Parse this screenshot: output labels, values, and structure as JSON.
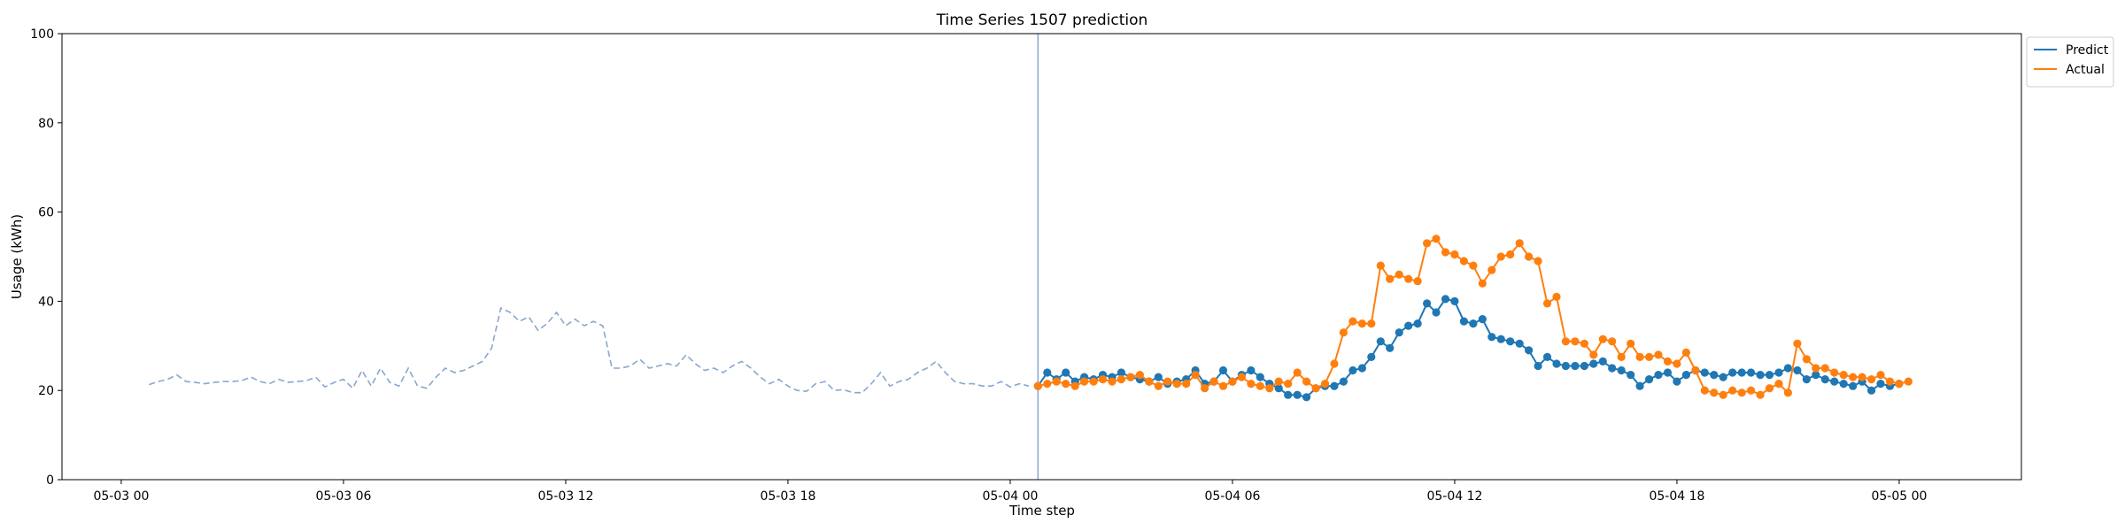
{
  "chart_data": {
    "type": "line",
    "title": "Time Series 1507 prediction",
    "xlabel": "Time step",
    "ylabel": "Usage (kWh)",
    "ylim": [
      0,
      100
    ],
    "y_ticks": [
      0,
      20,
      40,
      60,
      80,
      100
    ],
    "x_tick_labels": [
      "05-03 00",
      "05-03 06",
      "05-03 12",
      "05-03 18",
      "05-04 00",
      "05-04 06",
      "05-04 12",
      "05-04 18",
      "05-05 00"
    ],
    "xlim_hours": [
      -1.6,
      51.3
    ],
    "step_hours": 0.25,
    "forecast_start_hour": 24.75,
    "legend_position": "top-right",
    "series": [
      {
        "name": "History",
        "in_legend": false,
        "color": "#8aa6cf",
        "style": "dashed",
        "start_hour": 0.75,
        "values": [
          21.3,
          22.0,
          22.5,
          23.5,
          22.0,
          21.8,
          21.5,
          21.8,
          22.0,
          22.0,
          22.2,
          23.0,
          22.0,
          21.5,
          22.5,
          21.8,
          22.0,
          22.2,
          23.0,
          20.8,
          21.8,
          22.5,
          20.5,
          24.5,
          21.0,
          25.0,
          21.8,
          21.0,
          25.0,
          21.0,
          20.5,
          23.0,
          25.0,
          24.0,
          24.5,
          25.5,
          26.5,
          29.5,
          38.5,
          37.5,
          35.5,
          36.5,
          33.5,
          35.0,
          37.5,
          34.5,
          36.0,
          34.5,
          35.5,
          34.5,
          25.0,
          25.0,
          25.5,
          27.0,
          25.0,
          25.5,
          26.0,
          25.5,
          28.0,
          26.0,
          24.5,
          25.0,
          24.0,
          25.5,
          26.5,
          25.0,
          23.0,
          21.5,
          22.5,
          21.0,
          20.0,
          19.8,
          21.5,
          22.0,
          20.0,
          20.2,
          19.5,
          19.5,
          21.5,
          24.0,
          21.0,
          22.0,
          22.5,
          24.0,
          25.0,
          26.5,
          24.0,
          22.0,
          21.5,
          21.5,
          21.0,
          21.0,
          22.0,
          20.8,
          21.5,
          21.0
        ]
      },
      {
        "name": "Predict",
        "in_legend": true,
        "color": "#1f77b4",
        "style": "solid-markers",
        "start_hour": 24.75,
        "values": [
          21.0,
          24.0,
          22.5,
          24.0,
          22.0,
          23.0,
          22.5,
          23.5,
          23.0,
          24.0,
          23.0,
          22.5,
          22.0,
          23.0,
          21.5,
          22.0,
          22.5,
          24.5,
          21.5,
          22.0,
          24.5,
          22.0,
          23.5,
          24.5,
          23.0,
          21.5,
          20.5,
          19.0,
          19.0,
          18.5,
          20.5,
          21.0,
          21.0,
          22.0,
          24.5,
          25.0,
          27.5,
          31.0,
          29.5,
          33.0,
          34.5,
          35.0,
          39.5,
          37.5,
          40.5,
          40.0,
          35.5,
          35.0,
          36.0,
          32.0,
          31.5,
          31.0,
          30.5,
          29.0,
          25.5,
          27.5,
          26.0,
          25.5,
          25.5,
          25.5,
          26.0,
          26.5,
          25.0,
          24.5,
          23.5,
          21.0,
          22.5,
          23.5,
          24.0,
          22.0,
          23.5,
          24.5,
          24.0,
          23.5,
          23.0,
          24.0,
          24.0,
          24.0,
          23.5,
          23.5,
          24.0,
          25.0,
          24.5,
          22.5,
          23.5,
          22.5,
          22.0,
          21.5,
          21.0,
          22.0,
          20.0,
          21.5,
          21.0,
          21.5
        ]
      },
      {
        "name": "Actual",
        "in_legend": true,
        "color": "#ff7f0e",
        "style": "solid-markers",
        "start_hour": 24.75,
        "values": [
          21.0,
          21.5,
          22.0,
          21.5,
          21.0,
          22.0,
          22.0,
          22.5,
          22.0,
          22.5,
          23.0,
          23.5,
          22.0,
          21.0,
          22.0,
          21.5,
          21.5,
          23.5,
          20.5,
          22.0,
          21.0,
          22.0,
          23.0,
          21.5,
          21.0,
          20.5,
          22.0,
          21.5,
          24.0,
          22.0,
          20.5,
          21.5,
          26.0,
          33.0,
          35.5,
          35.0,
          35.0,
          48.0,
          45.0,
          46.0,
          45.0,
          44.5,
          53.0,
          54.0,
          51.0,
          50.5,
          49.0,
          48.0,
          44.0,
          47.0,
          50.0,
          50.5,
          53.0,
          50.0,
          49.0,
          39.5,
          41.0,
          31.0,
          31.0,
          30.5,
          28.0,
          31.5,
          31.0,
          27.5,
          30.5,
          27.5,
          27.5,
          28.0,
          26.5,
          26.0,
          28.5,
          24.5,
          20.0,
          19.5,
          19.0,
          20.0,
          19.5,
          20.0,
          19.0,
          20.5,
          21.5,
          19.5,
          30.5,
          27.0,
          25.0,
          25.0,
          24.0,
          23.5,
          23.0,
          23.0,
          22.5,
          23.5,
          22.0,
          21.5,
          22.0
        ]
      }
    ]
  }
}
